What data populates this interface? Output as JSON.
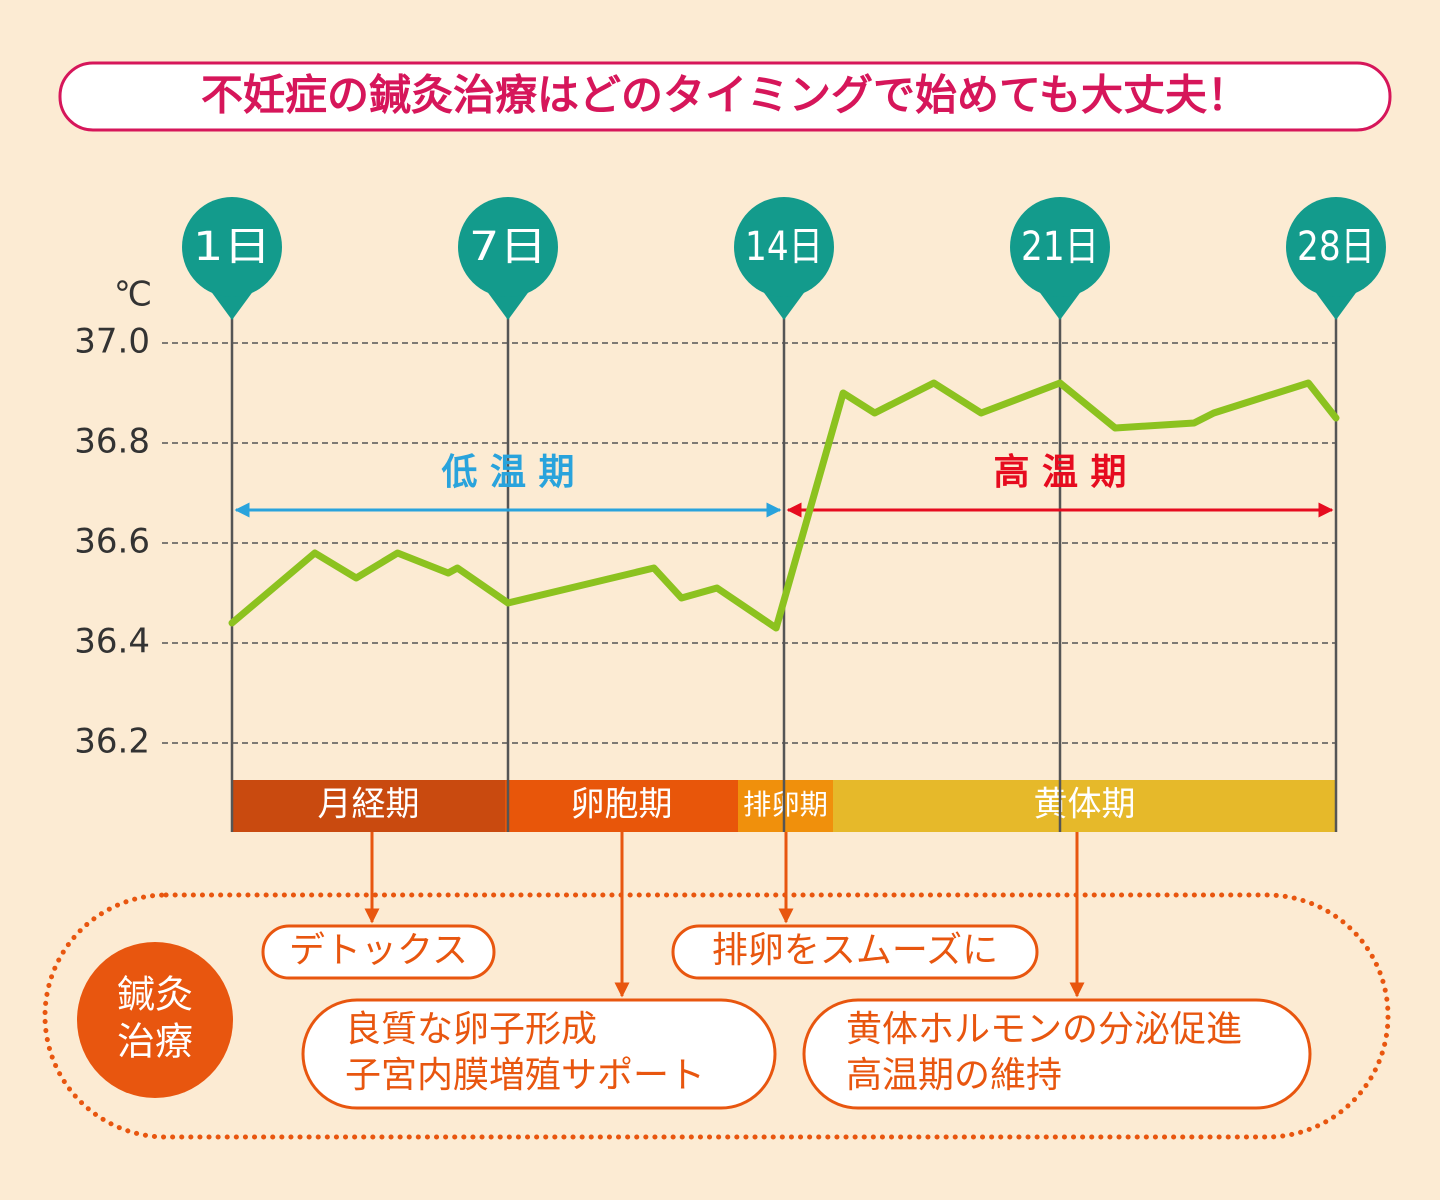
{
  "chart_data": {
    "type": "line",
    "title": "不妊症の鍼灸治療はどのタイミングで始めても大丈夫！",
    "y_unit": "℃",
    "x": [
      1,
      2.8,
      3.7,
      4.6,
      5.7,
      5.9,
      7,
      10.7,
      11.4,
      12.3,
      13.8,
      15.5,
      16.3,
      17.8,
      19,
      21,
      22.4,
      24.4,
      24.9,
      27.3,
      28
    ],
    "series": [
      {
        "color": "#8cc21f",
        "values": [
          36.44,
          36.58,
          36.53,
          36.58,
          36.54,
          36.55,
          36.48,
          36.55,
          36.49,
          36.51,
          36.43,
          36.9,
          36.86,
          36.92,
          36.86,
          36.92,
          36.83,
          36.84,
          36.86,
          36.92,
          36.85
        ]
      }
    ],
    "xlim": [
      1,
      28
    ],
    "xticks": [
      {
        "value": 1,
        "label": "1日"
      },
      {
        "value": 7,
        "label": "7日"
      },
      {
        "value": 14,
        "label": "14日"
      },
      {
        "value": 21,
        "label": "21日"
      },
      {
        "value": 28,
        "label": "28日"
      }
    ],
    "ylim": [
      36.2,
      37.0
    ],
    "yticks": [
      {
        "value": 37,
        "label": "37.0"
      },
      36.8,
      36.6,
      36.4,
      36.2
    ],
    "grid": true,
    "periods": [
      {
        "label": "低 温 期",
        "color": "#29a3dc"
      },
      {
        "label": "高 温 期",
        "color": "#e60b1f"
      }
    ],
    "phases": [
      {
        "label": "月経期",
        "color": "#c94a0f"
      },
      {
        "label": "卵胞期",
        "color": "#e8560a"
      },
      {
        "label": "排卵期",
        "color": "#f0900c"
      },
      {
        "label": "黄体期",
        "color": "#e6b92a"
      }
    ],
    "treatment": {
      "lines": [
        "鍼灸",
        "治療"
      ]
    },
    "effects": [
      {
        "lines": [
          "デトックス"
        ]
      },
      {
        "lines": [
          "良質な卵子形成",
          "子宮内膜増殖サポート"
        ]
      },
      {
        "lines": [
          "排卵をスムーズに"
        ]
      },
      {
        "lines": [
          "黄体ホルモンの分泌促進",
          "高温期の維持"
        ]
      }
    ]
  }
}
